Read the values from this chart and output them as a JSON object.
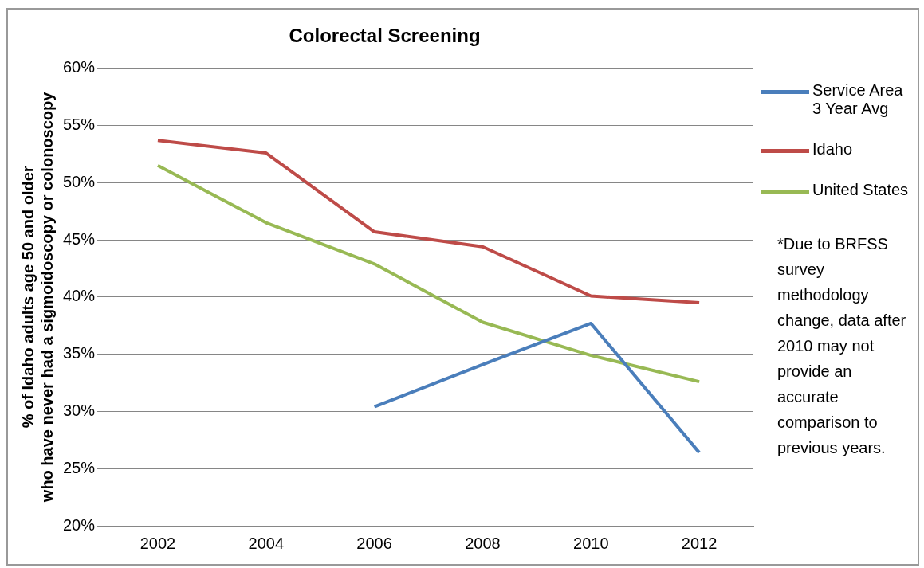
{
  "chart_data": {
    "type": "line",
    "title": "Colorectal Screening",
    "ylabel": "% of Idaho adults age 50 and older who have never had a sigmoidoscopy or colonoscopy",
    "categories": [
      "2002",
      "2004",
      "2006",
      "2008",
      "2010",
      "2012"
    ],
    "series": [
      {
        "name": "Service Area 3 Year Avg",
        "color": "#4a7ebb",
        "values": [
          null,
          null,
          30.4,
          34.1,
          37.7,
          26.4
        ]
      },
      {
        "name": "Idaho",
        "color": "#be4b48",
        "values": [
          53.7,
          52.6,
          45.7,
          44.4,
          40.1,
          39.5
        ]
      },
      {
        "name": "United States",
        "color": "#98b954",
        "values": [
          51.5,
          46.5,
          42.9,
          37.8,
          34.9,
          32.6
        ]
      }
    ],
    "ylim": [
      20,
      60
    ],
    "yticks": [
      {
        "value": 20,
        "label": "20%"
      },
      {
        "value": 25,
        "label": "25%"
      },
      {
        "value": 30,
        "label": "30%"
      },
      {
        "value": 35,
        "label": "35%"
      },
      {
        "value": 40,
        "label": "40%"
      },
      {
        "value": 45,
        "label": "45%"
      },
      {
        "value": 50,
        "label": "50%"
      },
      {
        "value": 55,
        "label": "55%"
      },
      {
        "value": 60,
        "label": "60%"
      }
    ],
    "grid": "y",
    "legend": "right",
    "marker": "none",
    "line_style": "solid",
    "annotations": [
      "*Due to BRFSS survey methodology change, data after 2010 may not provide an accurate comparison to previous years."
    ]
  }
}
